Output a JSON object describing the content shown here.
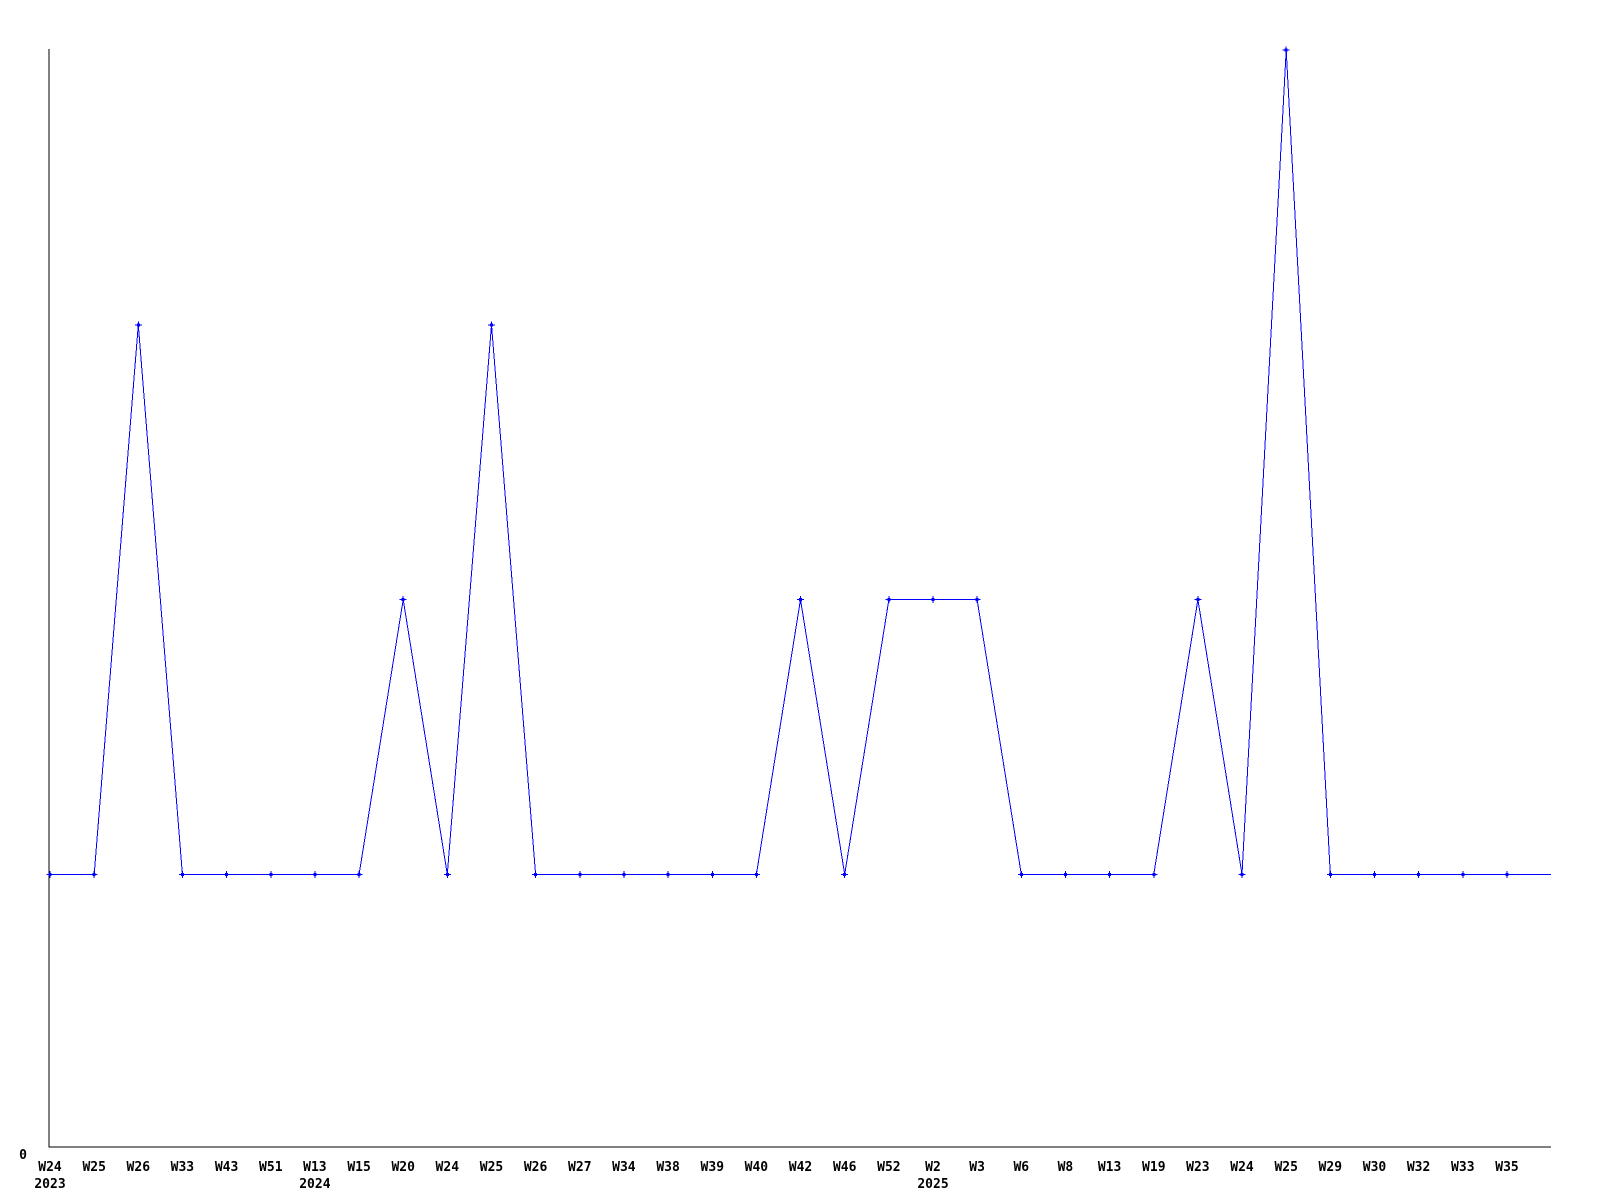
{
  "chart_data": {
    "type": "line",
    "title": "",
    "x_tick_labels": [
      "W24",
      "W25",
      "W26",
      "W33",
      "W43",
      "W51",
      "W13",
      "W15",
      "W20",
      "W24",
      "W25",
      "W26",
      "W27",
      "W34",
      "W38",
      "W39",
      "W40",
      "W42",
      "W46",
      "W52",
      "W2",
      "W3",
      "W6",
      "W8",
      "W13",
      "W19",
      "W23",
      "W24",
      "W25",
      "W29",
      "W30",
      "W32",
      "W33",
      "W35"
    ],
    "year_labels": [
      {
        "tick_index": 0,
        "label": "2023"
      },
      {
        "tick_index": 6,
        "label": "2024"
      },
      {
        "tick_index": 20,
        "label": "2025"
      }
    ],
    "values": [
      1,
      1,
      3,
      1,
      1,
      1,
      1,
      1,
      2,
      1,
      3,
      1,
      1,
      1,
      1,
      1,
      1,
      2,
      1,
      2,
      2,
      2,
      1,
      1,
      1,
      1,
      2,
      1,
      4,
      1,
      1,
      1,
      1,
      1
    ],
    "y_axis": {
      "tick_labels": [
        "0"
      ],
      "min": 0,
      "max_implied": 4.1,
      "grid": false
    },
    "legend": null,
    "marker": "plus",
    "line_extends_flat_to_right_edge": true,
    "colors": {
      "series": "#0000ff",
      "axis": "#000000",
      "text": "#000000",
      "background": "#ffffff"
    }
  }
}
